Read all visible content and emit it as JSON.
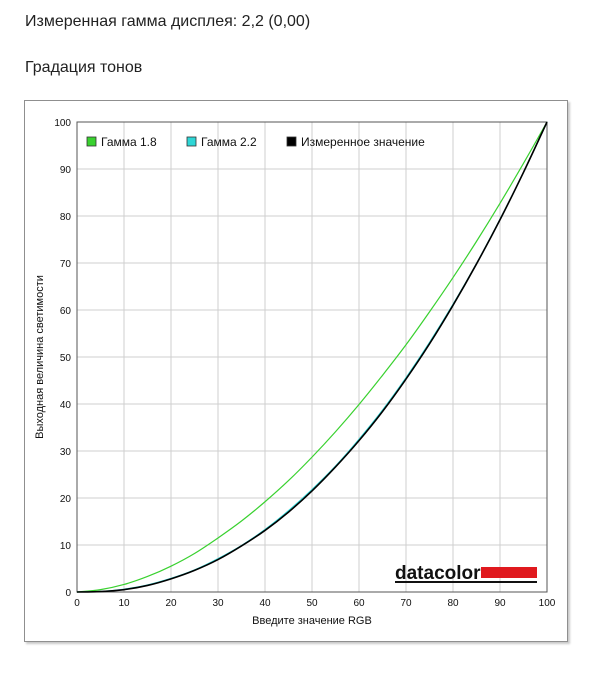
{
  "header": {
    "measured_gamma": "Измеренная гамма дисплея: 2,2 (0,00)",
    "section_title": "Градация тонов"
  },
  "logo": {
    "text": "datacolor",
    "bar_color": "#e0191e"
  },
  "chart_data": {
    "type": "line",
    "xlabel": "Введите значение RGB",
    "ylabel": "Выходная величина светимости",
    "xlim": [
      0,
      100
    ],
    "ylim": [
      0,
      100
    ],
    "xticks": [
      "0",
      "10",
      "20",
      "30",
      "40",
      "50",
      "60",
      "70",
      "80",
      "90",
      "100"
    ],
    "yticks": [
      "0",
      "10",
      "20",
      "30",
      "40",
      "50",
      "60",
      "70",
      "80",
      "90",
      "100"
    ],
    "grid": true,
    "legend_position": "top-left",
    "x": [
      0,
      5,
      10,
      15,
      20,
      25,
      30,
      35,
      40,
      45,
      50,
      55,
      60,
      65,
      70,
      75,
      80,
      85,
      90,
      95,
      100
    ],
    "series": [
      {
        "name": "Гамма 1.8",
        "color": "#39d12f",
        "values": [
          0,
          0.5,
          1.6,
          3.3,
          5.5,
          8.2,
          11.5,
          15.1,
          19.2,
          23.7,
          28.7,
          34.1,
          39.9,
          46.1,
          52.6,
          59.6,
          66.9,
          74.6,
          82.7,
          91.2,
          100
        ]
      },
      {
        "name": "Гамма 2.2",
        "color": "#2ed6d6",
        "values": [
          0,
          0.1,
          0.6,
          1.5,
          2.9,
          4.7,
          7.1,
          9.9,
          13.3,
          17.3,
          21.8,
          26.8,
          32.5,
          38.7,
          45.6,
          53.1,
          61.2,
          69.9,
          79.3,
          89.3,
          100
        ]
      },
      {
        "name": "Измеренное значение",
        "color": "#000000",
        "values": [
          0,
          0.1,
          0.5,
          1.4,
          2.8,
          4.6,
          6.9,
          9.8,
          13.1,
          17.0,
          21.5,
          26.6,
          32.2,
          38.4,
          45.3,
          52.8,
          61.0,
          69.8,
          79.2,
          89.3,
          100
        ]
      }
    ]
  }
}
